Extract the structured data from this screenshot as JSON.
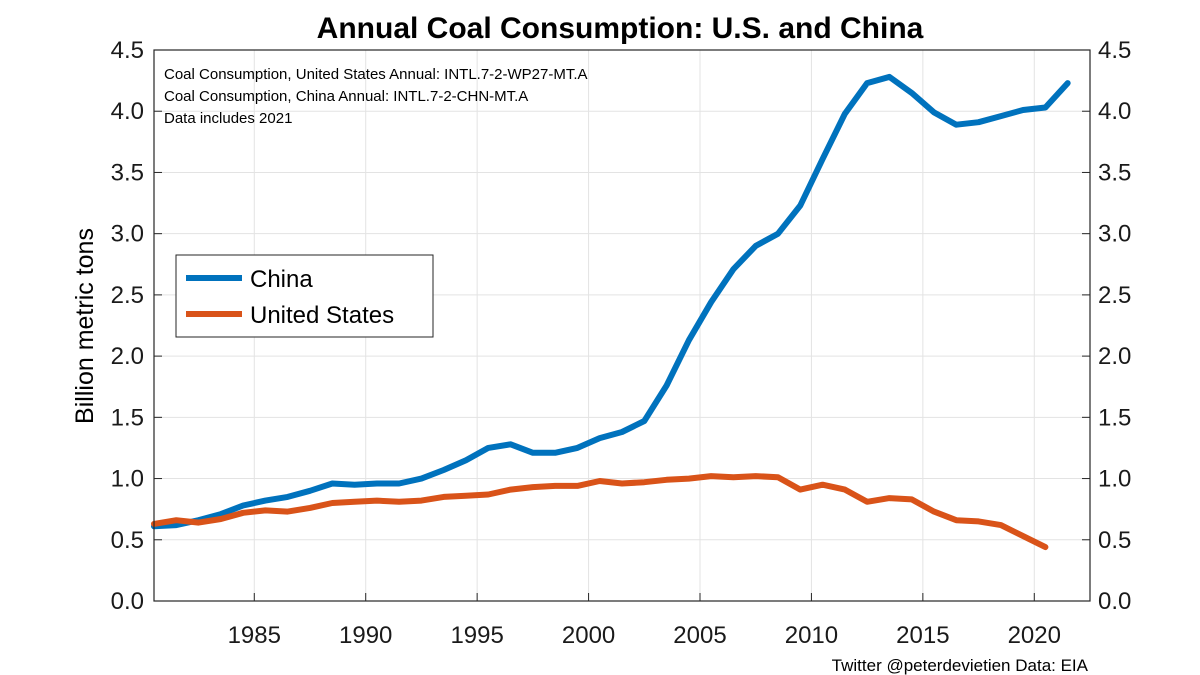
{
  "chart_data": {
    "type": "line",
    "title": "Annual Coal Consumption: U.S. and China",
    "xlabel": "",
    "ylabel": "Billion metric tons",
    "xlim": [
      1980.5,
      2022.5
    ],
    "ylim": [
      0,
      4.5
    ],
    "x_ticks": [
      1985,
      1990,
      1995,
      2000,
      2005,
      2010,
      2015,
      2020
    ],
    "y_ticks": [
      "0.0",
      "0.5",
      "1.0",
      "1.5",
      "2.0",
      "2.5",
      "3.0",
      "3.5",
      "4.0",
      "4.5"
    ],
    "grid": true,
    "legend_position": "left",
    "x": [
      1980.5,
      1981.5,
      1982.5,
      1983.5,
      1984.5,
      1985.5,
      1986.5,
      1987.5,
      1988.5,
      1989.5,
      1990.5,
      1991.5,
      1992.5,
      1993.5,
      1994.5,
      1995.5,
      1996.5,
      1997.5,
      1998.5,
      1999.5,
      2000.5,
      2001.5,
      2002.5,
      2003.5,
      2004.5,
      2005.5,
      2006.5,
      2007.5,
      2008.5,
      2009.5,
      2010.5,
      2011.5,
      2012.5,
      2013.5,
      2014.5,
      2015.5,
      2016.5,
      2017.5,
      2018.5,
      2019.5,
      2020.5,
      2021.5
    ],
    "series": [
      {
        "name": "China",
        "color": "#0072bd",
        "values": [
          0.61,
          0.62,
          0.66,
          0.71,
          0.78,
          0.82,
          0.85,
          0.9,
          0.96,
          0.95,
          0.96,
          0.96,
          1.0,
          1.07,
          1.15,
          1.25,
          1.28,
          1.21,
          1.21,
          1.25,
          1.33,
          1.38,
          1.47,
          1.76,
          2.13,
          2.44,
          2.71,
          2.9,
          3.0,
          3.23,
          3.61,
          3.98,
          4.23,
          4.28,
          4.15,
          3.99,
          3.89,
          3.91,
          3.96,
          4.01,
          4.03,
          4.23
        ]
      },
      {
        "name": "United States",
        "color": "#d95319",
        "values": [
          0.63,
          0.66,
          0.64,
          0.67,
          0.72,
          0.74,
          0.73,
          0.76,
          0.8,
          0.81,
          0.82,
          0.81,
          0.82,
          0.85,
          0.86,
          0.87,
          0.91,
          0.93,
          0.94,
          0.94,
          0.98,
          0.96,
          0.97,
          0.99,
          1.0,
          1.02,
          1.01,
          1.02,
          1.01,
          0.91,
          0.95,
          0.91,
          0.81,
          0.84,
          0.83,
          0.73,
          0.66,
          0.65,
          0.62,
          0.53,
          0.44,
          null
        ]
      }
    ],
    "annotations": [
      "Coal Consumption, United States Annual: INTL.7-2-WP27-MT.A",
      "Coal Consumption, China Annual: INTL.7-2-CHN-MT.A",
      "Data includes 2021"
    ],
    "credit": "Twitter @peterdevietien  Data: EIA"
  }
}
